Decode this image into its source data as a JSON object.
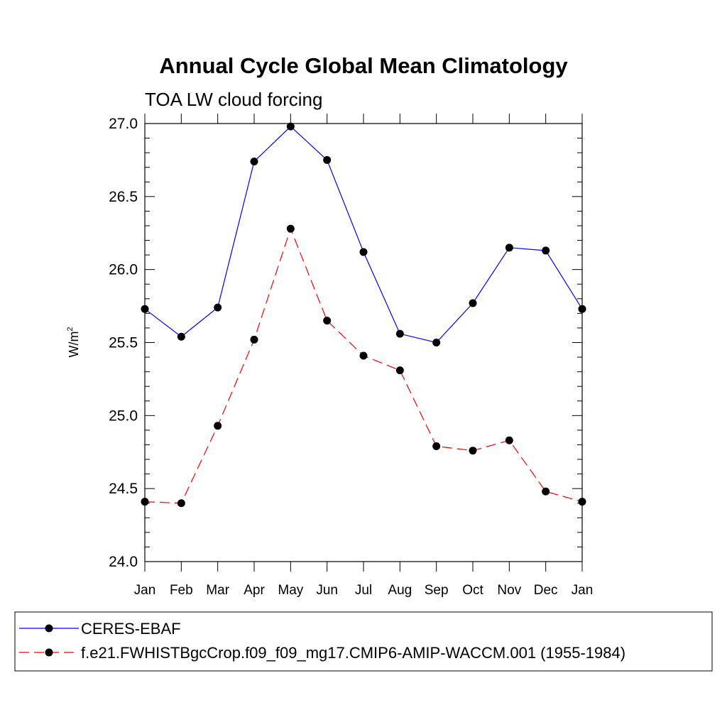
{
  "chart_data": {
    "type": "line",
    "title": "Annual Cycle Global Mean Climatology",
    "subtitle": "TOA LW cloud forcing",
    "ylabel_base": "W/m",
    "ylabel_sup": "2",
    "xlabel": "",
    "categories": [
      "Jan",
      "Feb",
      "Mar",
      "Apr",
      "May",
      "Jun",
      "Jul",
      "Aug",
      "Sep",
      "Oct",
      "Nov",
      "Dec",
      "Jan"
    ],
    "ylim": [
      24.0,
      27.0
    ],
    "yticks": [
      "24.0",
      "24.5",
      "25.0",
      "25.5",
      "26.0",
      "26.5",
      "27.0"
    ],
    "series": [
      {
        "name": "CERES-EBAF",
        "color": "#0000ff",
        "dash": "solid",
        "values": [
          25.73,
          25.54,
          25.74,
          26.74,
          26.98,
          26.75,
          26.12,
          25.56,
          25.5,
          25.77,
          26.15,
          26.13,
          25.73
        ]
      },
      {
        "name": "f.e21.FWHISTBgcCrop.f09_f09_mg17.CMIP6-AMIP-WACCM.001 (1955-1984)",
        "color": "#ff0000",
        "dash": "dashed",
        "values": [
          24.41,
          24.4,
          24.93,
          25.52,
          26.28,
          25.65,
          25.41,
          25.31,
          24.79,
          24.76,
          24.83,
          24.48,
          24.41
        ]
      }
    ],
    "marker": "filled-circle",
    "marker_color": "#000000",
    "legend": "bottom"
  }
}
